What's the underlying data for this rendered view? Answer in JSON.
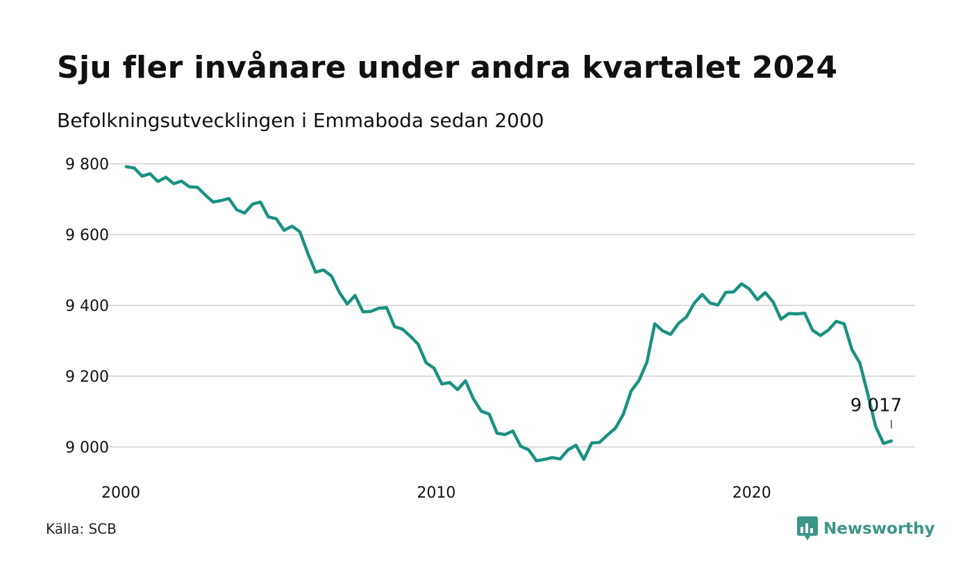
{
  "title": "Sju fler invånare under andra kvartalet 2024",
  "subtitle": "Befolkningsutvecklingen i Emmaboda sedan 2000",
  "source": "Källa: SCB",
  "brand": {
    "name": "Newsworthy",
    "icon": "newsworthy-logo-icon",
    "color": "#3d9688"
  },
  "colors": {
    "line": "#1a9181",
    "grid": "#dddddd",
    "text": "#111111"
  },
  "chart_data": {
    "type": "line",
    "title": "Sju fler invånare under andra kvartalet 2024",
    "subtitle": "Befolkningsutvecklingen i Emmaboda sedan 2000",
    "xlabel": "",
    "ylabel": "",
    "xlim": [
      2000,
      2025
    ],
    "ylim": [
      8920,
      9800
    ],
    "grid": true,
    "x_ticks": [
      2000,
      2010,
      2020
    ],
    "x_tick_labels": [
      "2000",
      "2010",
      "2020"
    ],
    "y_ticks": [
      9000,
      9200,
      9400,
      9600,
      9800
    ],
    "y_tick_labels": [
      "9 000",
      "9 200",
      "9 400",
      "9 600",
      "9 800"
    ],
    "annotation": {
      "label": "9 017",
      "x": 2024.25,
      "y": 9017
    },
    "x": [
      2000.0,
      2000.25,
      2000.5,
      2000.75,
      2001.0,
      2001.25,
      2001.5,
      2001.75,
      2002.0,
      2002.25,
      2002.5,
      2002.75,
      2003.0,
      2003.25,
      2003.5,
      2003.75,
      2004.0,
      2004.25,
      2004.5,
      2004.75,
      2005.0,
      2005.25,
      2005.5,
      2005.75,
      2006.0,
      2006.25,
      2006.5,
      2006.75,
      2007.0,
      2007.25,
      2007.5,
      2007.75,
      2008.0,
      2008.25,
      2008.5,
      2008.75,
      2009.0,
      2009.25,
      2009.5,
      2009.75,
      2010.0,
      2010.25,
      2010.5,
      2010.75,
      2011.0,
      2011.25,
      2011.5,
      2011.75,
      2012.0,
      2012.25,
      2012.5,
      2012.75,
      2013.0,
      2013.25,
      2013.5,
      2013.75,
      2014.0,
      2014.25,
      2014.5,
      2014.75,
      2015.0,
      2015.25,
      2015.5,
      2015.75,
      2016.0,
      2016.25,
      2016.5,
      2016.75,
      2017.0,
      2017.25,
      2017.5,
      2017.75,
      2018.0,
      2018.25,
      2018.5,
      2018.75,
      2019.0,
      2019.25,
      2019.5,
      2019.75,
      2020.0,
      2020.25,
      2020.5,
      2020.75,
      2021.0,
      2021.25,
      2021.5,
      2021.75,
      2022.0,
      2022.25,
      2022.5,
      2022.75,
      2023.0,
      2023.25,
      2023.5,
      2023.75,
      2024.0,
      2024.25
    ],
    "series": [
      {
        "values": [
          9792,
          9788,
          9765,
          9772,
          9750,
          9762,
          9744,
          9751,
          9735,
          9734,
          9712,
          9692,
          9696,
          9702,
          9670,
          9661,
          9686,
          9692,
          9650,
          9645,
          9612,
          9624,
          9608,
          9547,
          9494,
          9500,
          9483,
          9437,
          9404,
          9428,
          9382,
          9383,
          9392,
          9394,
          9340,
          9333,
          9313,
          9290,
          9238,
          9223,
          9178,
          9182,
          9162,
          9187,
          9136,
          9101,
          9093,
          9039,
          9035,
          9045,
          9002,
          8992,
          8961,
          8965,
          8970,
          8966,
          8992,
          9005,
          8965,
          9011,
          9013,
          9034,
          9053,
          9092,
          9158,
          9188,
          9240,
          9348,
          9328,
          9318,
          9349,
          9367,
          9406,
          9431,
          9407,
          9401,
          9437,
          9438,
          9461,
          9446,
          9416,
          9436,
          9410,
          9361,
          9377,
          9376,
          9378,
          9330,
          9315,
          9330,
          9355,
          9348,
          9275,
          9237,
          9150,
          9058,
          9010,
          9017
        ]
      }
    ]
  }
}
